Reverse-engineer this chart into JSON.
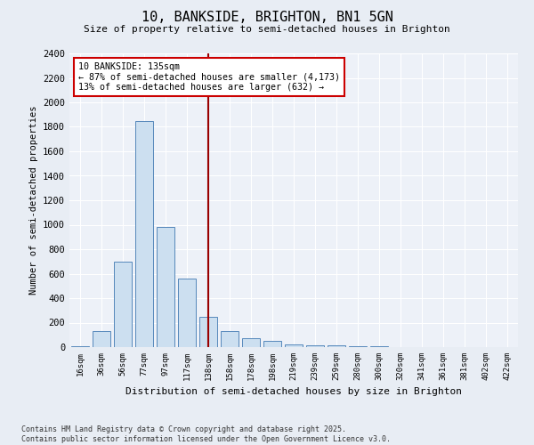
{
  "title": "10, BANKSIDE, BRIGHTON, BN1 5GN",
  "subtitle": "Size of property relative to semi-detached houses in Brighton",
  "xlabel": "Distribution of semi-detached houses by size in Brighton",
  "ylabel": "Number of semi-detached properties",
  "footer_line1": "Contains HM Land Registry data © Crown copyright and database right 2025.",
  "footer_line2": "Contains public sector information licensed under the Open Government Licence v3.0.",
  "bin_labels": [
    "16sqm",
    "36sqm",
    "56sqm",
    "77sqm",
    "97sqm",
    "117sqm",
    "138sqm",
    "158sqm",
    "178sqm",
    "198sqm",
    "219sqm",
    "239sqm",
    "259sqm",
    "280sqm",
    "300sqm",
    "320sqm",
    "341sqm",
    "361sqm",
    "381sqm",
    "402sqm",
    "422sqm"
  ],
  "bin_values": [
    10,
    130,
    700,
    1850,
    980,
    560,
    245,
    130,
    75,
    50,
    25,
    15,
    18,
    8,
    5,
    3,
    2,
    1,
    0,
    0,
    0
  ],
  "property_bin_index": 6,
  "bar_color": "#ccdff0",
  "bar_edge_color": "#5588bb",
  "marker_color": "#990000",
  "annotation_text": "10 BANKSIDE: 135sqm\n← 87% of semi-detached houses are smaller (4,173)\n13% of semi-detached houses are larger (632) →",
  "annotation_box_color": "#ffffff",
  "annotation_box_edge": "#cc0000",
  "ylim": [
    0,
    2400
  ],
  "yticks": [
    0,
    200,
    400,
    600,
    800,
    1000,
    1200,
    1400,
    1600,
    1800,
    2000,
    2200,
    2400
  ],
  "background_color": "#e8edf4",
  "plot_bg_color": "#edf1f8"
}
